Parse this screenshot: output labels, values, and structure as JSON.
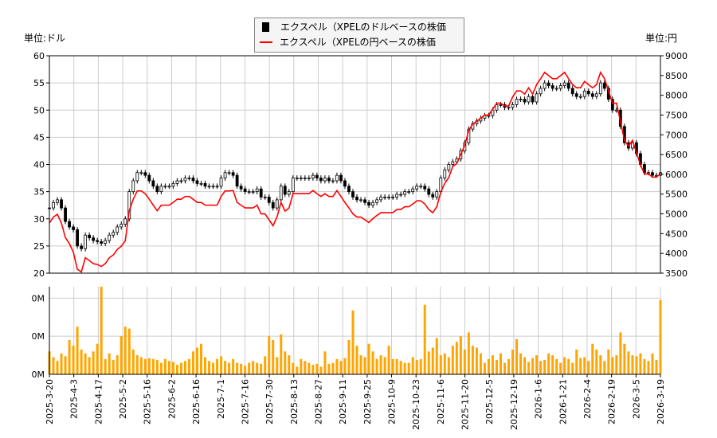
{
  "chart_data": [
    {
      "type": "candlestick+line",
      "legend": {
        "placement": "top-center",
        "entries": [
          "エクスペル（XPELのドルベースの株価",
          "エクスペル（XPELの円ベースの株価"
        ]
      },
      "left_unit": "単位:ドル",
      "right_unit": "単位:円",
      "left_ylim": [
        20,
        60
      ],
      "left_ticks": [
        "20",
        "25",
        "30",
        "35",
        "40",
        "45",
        "50",
        "55",
        "60"
      ],
      "right_ylim": [
        3500,
        9000
      ],
      "right_ticks": [
        "3500",
        "4000",
        "4500",
        "5000",
        "5500",
        "6000",
        "6500",
        "7000",
        "7500",
        "8000",
        "8500",
        "9000"
      ],
      "grid": true,
      "colors": {
        "usd": "#000000",
        "jpy": "#ff0000",
        "volume": "#ffa500"
      },
      "usd_close": [
        32,
        33,
        33.5,
        32,
        29.5,
        28.5,
        28,
        25,
        24.5,
        27,
        26.5,
        26,
        25.8,
        25.5,
        26,
        27,
        27.5,
        28.5,
        29,
        30,
        35,
        37,
        38.5,
        38.5,
        38,
        37,
        36,
        35,
        36,
        36,
        36,
        36.5,
        37,
        37,
        37.5,
        37.5,
        37,
        36.5,
        36.5,
        36,
        36,
        36,
        36,
        37.5,
        38.5,
        38.5,
        38,
        36,
        35.5,
        35,
        35,
        35,
        35.5,
        34,
        34,
        33,
        32,
        33.5,
        36,
        34.5,
        35,
        37.5,
        37.5,
        37.5,
        37.5,
        37.5,
        38,
        37.5,
        37,
        37.5,
        37,
        37,
        38,
        37,
        36,
        35,
        34,
        33.5,
        33.5,
        33,
        32.5,
        33,
        33.5,
        34,
        34,
        34,
        34,
        34.5,
        34.5,
        35,
        35,
        35.5,
        36,
        36,
        35.5,
        34.5,
        34,
        35,
        37.5,
        39,
        40,
        40.5,
        41,
        42.5,
        44,
        46.5,
        47.5,
        48,
        48.5,
        49,
        49,
        50,
        51,
        51,
        50.5,
        50.5,
        51,
        52,
        52,
        51.5,
        52.5,
        51.5,
        53,
        54,
        55,
        54.5,
        54,
        54,
        54.5,
        55,
        54,
        53,
        52.5,
        52.5,
        53.5,
        53,
        52.5,
        53,
        55,
        54,
        52,
        50,
        50,
        47,
        44,
        43,
        44,
        42,
        40,
        38.5,
        38.5,
        38,
        38,
        38.5
      ],
      "jpy_close": [
        4770,
        4920,
        4990,
        4770,
        4400,
        4250,
        4030,
        3600,
        3530,
        3890,
        3820,
        3740,
        3720,
        3670,
        3740,
        3890,
        3960,
        4100,
        4180,
        4320,
        5080,
        5370,
        5580,
        5580,
        5510,
        5370,
        5220,
        5080,
        5220,
        5220,
        5220,
        5290,
        5370,
        5370,
        5440,
        5440,
        5370,
        5290,
        5290,
        5220,
        5220,
        5220,
        5220,
        5440,
        5580,
        5580,
        5590,
        5290,
        5220,
        5150,
        5150,
        5150,
        5220,
        5000,
        5000,
        4850,
        4700,
        4920,
        5290,
        5070,
        5150,
        5510,
        5510,
        5510,
        5510,
        5510,
        5590,
        5510,
        5440,
        5510,
        5440,
        5440,
        5590,
        5440,
        5290,
        5150,
        5000,
        4920,
        4920,
        4850,
        4780,
        4880,
        4960,
        5030,
        5030,
        5030,
        5030,
        5110,
        5110,
        5180,
        5180,
        5250,
        5330,
        5330,
        5250,
        5110,
        5030,
        5180,
        5550,
        5770,
        5920,
        6200,
        6270,
        6500,
        6730,
        7110,
        7270,
        7340,
        7420,
        7500,
        7500,
        7650,
        7800,
        7800,
        7730,
        7730,
        7960,
        8110,
        8110,
        8030,
        8190,
        8030,
        8270,
        8420,
        8580,
        8500,
        8420,
        8420,
        8500,
        8580,
        8420,
        8270,
        8190,
        8190,
        8350,
        8270,
        8190,
        8270,
        8580,
        8420,
        8110,
        7800,
        7800,
        7330,
        6860,
        6710,
        6860,
        6550,
        6240,
        6010,
        6010,
        5930,
        5930,
        6010
      ]
    },
    {
      "type": "bar",
      "ylim": [
        0,
        460000
      ],
      "y_ticks": [
        {
          "value": 0,
          "label": "0M"
        },
        {
          "value": 200000,
          "label": "0M"
        },
        {
          "value": 400000,
          "label": "0M"
        }
      ],
      "x_tick_labels": [
        "2025-3-20",
        "2025-4-3",
        "2025-4-17",
        "2025-5-2",
        "2025-5-16",
        "2025-6-2",
        "2025-6-16",
        "2025-7-1",
        "2025-7-16",
        "2025-7-30",
        "2025-8-13",
        "2025-8-27",
        "2025-9-11",
        "2025-9-25",
        "2025-10-9",
        "2025-10-23",
        "2025-11-6",
        "2025-11-20",
        "2025-12-5",
        "2025-12-19",
        "2026-1-6",
        "2026-1-21",
        "2026-2-4",
        "2026-2-19",
        "2026-3-5",
        "2026-3-19"
      ],
      "volume": [
        120,
        90,
        70,
        110,
        95,
        180,
        150,
        250,
        130,
        110,
        90,
        120,
        160,
        480,
        80,
        110,
        75,
        100,
        200,
        250,
        240,
        130,
        100,
        90,
        80,
        85,
        80,
        75,
        60,
        80,
        70,
        65,
        50,
        60,
        70,
        80,
        120,
        140,
        160,
        90,
        70,
        60,
        80,
        95,
        70,
        60,
        80,
        60,
        55,
        45,
        60,
        70,
        60,
        55,
        95,
        200,
        180,
        90,
        210,
        120,
        100,
        60,
        40,
        80,
        70,
        60,
        50,
        55,
        40,
        120,
        55,
        60,
        80,
        70,
        85,
        180,
        335,
        150,
        100,
        90,
        160,
        120,
        80,
        100,
        90,
        150,
        80,
        80,
        70,
        60,
        60,
        90,
        75,
        80,
        365,
        120,
        140,
        190,
        100,
        110,
        90,
        150,
        170,
        200,
        130,
        220,
        150,
        140,
        110,
        60,
        80,
        100,
        75,
        110,
        60,
        80,
        130,
        185,
        110,
        90,
        65,
        85,
        100,
        70,
        75,
        110,
        100,
        80,
        60,
        90,
        80,
        60,
        130,
        85,
        90,
        70,
        160,
        130,
        100,
        70,
        130,
        90,
        100,
        220,
        160,
        120,
        100,
        95,
        110,
        80,
        70,
        110,
        75,
        390
      ]
    }
  ]
}
